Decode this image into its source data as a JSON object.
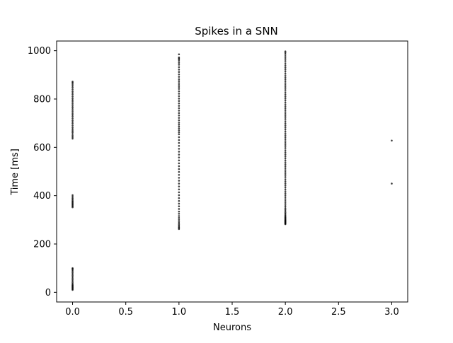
{
  "chart_data": {
    "type": "scatter",
    "title": "Spikes in a SNN",
    "xlabel": "Neurons",
    "ylabel": "Time [ms]",
    "xlim": [
      -0.15,
      3.15
    ],
    "ylim": [
      -40,
      1040
    ],
    "xticks": [
      0.0,
      0.5,
      1.0,
      1.5,
      2.0,
      2.5,
      3.0
    ],
    "xtick_labels": [
      "0.0",
      "0.5",
      "1.0",
      "1.5",
      "2.0",
      "2.5",
      "3.0"
    ],
    "yticks": [
      0,
      200,
      400,
      600,
      800,
      1000
    ],
    "ytick_labels": [
      "0",
      "200",
      "400",
      "600",
      "800",
      "1000"
    ],
    "grid": false,
    "legend": "none",
    "marker_color": "#000000",
    "series": [
      {
        "x": 0,
        "y": [
          10,
          13,
          16,
          19,
          22,
          25,
          28,
          31,
          35,
          40,
          46,
          52,
          58,
          64,
          70,
          76,
          82,
          88,
          93,
          97,
          100,
          352,
          356,
          360,
          364,
          368,
          372,
          376,
          380,
          385,
          390,
          396,
          402,
          636,
          642,
          648,
          655,
          662,
          668,
          675,
          682,
          690,
          698,
          705,
          712,
          720,
          728,
          735,
          742,
          750,
          758,
          765,
          772,
          780,
          788,
          795,
          802,
          810,
          818,
          825,
          832,
          840,
          848,
          855,
          862,
          868,
          872
        ]
      },
      {
        "x": 1,
        "y": [
          262,
          266,
          270,
          275,
          280,
          286,
          292,
          300,
          308,
          316,
          325,
          334,
          345,
          356,
          367,
          378,
          390,
          402,
          414,
          426,
          438,
          450,
          462,
          474,
          486,
          498,
          510,
          522,
          534,
          546,
          558,
          570,
          582,
          594,
          606,
          618,
          630,
          642,
          654,
          662,
          670,
          678,
          686,
          694,
          702,
          712,
          722,
          732,
          742,
          752,
          762,
          772,
          782,
          792,
          802,
          812,
          822,
          832,
          842,
          850,
          858,
          866,
          874,
          882,
          892,
          902,
          912,
          922,
          932,
          942,
          950,
          958,
          964,
          968,
          972,
          985
        ]
      },
      {
        "x": 2,
        "y": [
          282,
          284,
          286,
          288,
          290,
          292,
          294,
          296,
          298,
          300,
          303,
          306,
          309,
          312,
          316,
          320,
          325,
          330,
          336,
          342,
          348,
          355,
          362,
          370,
          378,
          386,
          394,
          402,
          410,
          418,
          426,
          434,
          442,
          450,
          458,
          466,
          474,
          482,
          490,
          498,
          506,
          514,
          522,
          530,
          538,
          546,
          554,
          562,
          570,
          578,
          586,
          594,
          602,
          610,
          618,
          626,
          634,
          642,
          650,
          658,
          666,
          674,
          682,
          690,
          698,
          706,
          714,
          722,
          730,
          738,
          746,
          754,
          762,
          770,
          778,
          786,
          794,
          802,
          810,
          818,
          826,
          834,
          842,
          850,
          858,
          866,
          874,
          882,
          890,
          898,
          906,
          914,
          922,
          930,
          938,
          946,
          954,
          962,
          970,
          978,
          986,
          992,
          997
        ]
      },
      {
        "x": 3,
        "y": [
          450,
          628
        ]
      }
    ]
  }
}
